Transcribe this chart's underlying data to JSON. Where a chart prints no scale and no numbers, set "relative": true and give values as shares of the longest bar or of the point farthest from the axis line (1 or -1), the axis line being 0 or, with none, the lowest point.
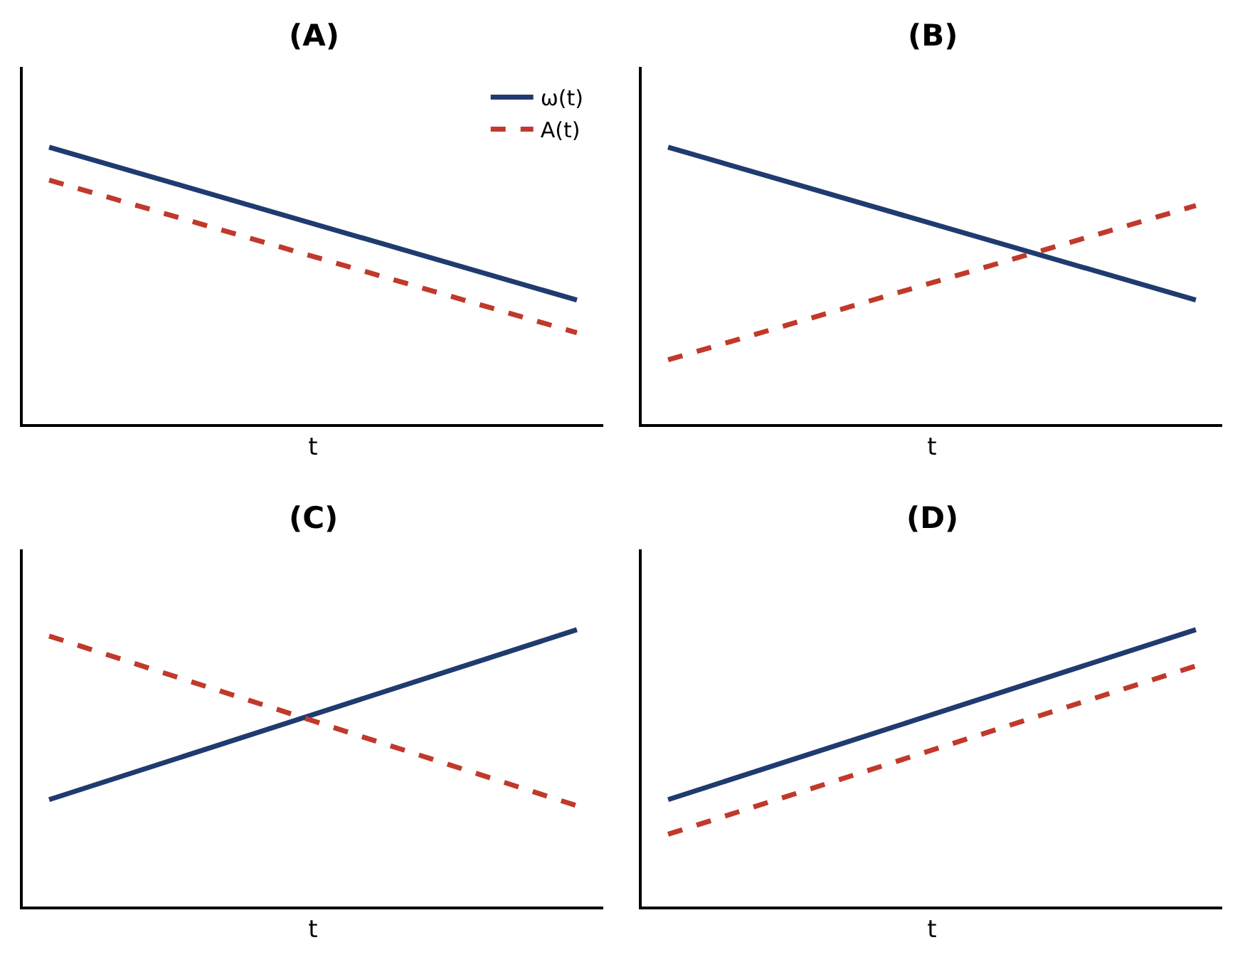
{
  "chart_data": [
    {
      "type": "line",
      "title": "(A)",
      "xlabel": "t",
      "categories": [
        null,
        null
      ],
      "relative": true,
      "legend": "top right",
      "marker": "none",
      "series": [
        {
          "name": "ω(t)",
          "color": "#1f3b6f",
          "values": [
            1,
            0.448
          ],
          "line_style": "solid"
        },
        {
          "name": "A(t)",
          "color": "#c0392b",
          "values": [
            0.881,
            0.33
          ],
          "line_style": "dashed"
        }
      ]
    },
    {
      "type": "line",
      "title": "(B)",
      "xlabel": "t",
      "categories": [
        null,
        null
      ],
      "relative": true,
      "legend": false,
      "marker": "none",
      "series": [
        {
          "color": "#1f3b6f",
          "values": [
            1,
            0.448
          ],
          "line_style": "solid"
        },
        {
          "color": "#c0392b",
          "values": [
            0.232,
            0.789
          ],
          "line_style": "dashed"
        }
      ]
    },
    {
      "type": "line",
      "title": "(C)",
      "xlabel": "t",
      "categories": [
        null,
        null
      ],
      "relative": true,
      "legend": false,
      "marker": "none",
      "series": [
        {
          "color": "#1f3b6f",
          "values": [
            0.386,
            1
          ],
          "line_style": "solid"
        },
        {
          "color": "#c0392b",
          "values": [
            0.977,
            0.364
          ],
          "line_style": "dashed"
        }
      ]
    },
    {
      "type": "line",
      "title": "(D)",
      "xlabel": "t",
      "categories": [
        null,
        null
      ],
      "relative": true,
      "legend": false,
      "marker": "none",
      "series": [
        {
          "color": "#1f3b6f",
          "values": [
            0.386,
            1
          ],
          "line_style": "solid"
        },
        {
          "color": "#c0392b",
          "values": [
            0.261,
            0.869
          ],
          "line_style": "dashed"
        }
      ]
    }
  ]
}
